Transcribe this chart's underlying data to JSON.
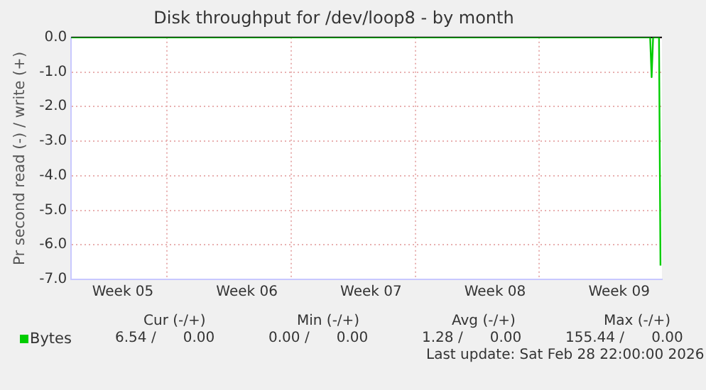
{
  "chart_data": {
    "type": "line",
    "title": "Disk throughput for /dev/loop8 - by month",
    "ylabel": "Pr second read (-) / write (+)",
    "x": [
      "2026-01-26T14:00",
      "2026-02-10T00:00",
      "2026-02-28T06:00",
      "2026-02-28T08:00",
      "2026-02-28T10:00",
      "2026-02-28T18:00",
      "2026-02-28T20:00"
    ],
    "series": [
      {
        "name": "Bytes",
        "color": "#00cc00",
        "values": [
          0,
          0,
          0,
          -1.15,
          0,
          0,
          -6.6
        ]
      }
    ],
    "xlim": [
      "2026-01-26T14:00",
      "2026-02-28T22:00"
    ],
    "xticks": [
      {
        "value": "2026-01-29T12:00",
        "label": "Week 05"
      },
      {
        "value": "2026-02-01T00:00",
        "label": null
      },
      {
        "value": "2026-02-05T12:00",
        "label": "Week 06"
      },
      {
        "value": "2026-02-08T00:00",
        "label": null
      },
      {
        "value": "2026-02-12T12:00",
        "label": "Week 07"
      },
      {
        "value": "2026-02-15T00:00",
        "label": null
      },
      {
        "value": "2026-02-19T12:00",
        "label": "Week 08"
      },
      {
        "value": "2026-02-22T00:00",
        "label": null
      },
      {
        "value": "2026-02-26T12:00",
        "label": "Week 09"
      }
    ],
    "ylim": [
      -7,
      0
    ],
    "yticks": [
      {
        "value": 0,
        "label": "0.0"
      },
      {
        "value": -1,
        "label": "-1.0"
      },
      {
        "value": -2,
        "label": "-2.0"
      },
      {
        "value": -3,
        "label": "-3.0"
      },
      {
        "value": -4,
        "label": "-4.0"
      },
      {
        "value": -5,
        "label": "-5.0"
      },
      {
        "value": -6,
        "label": "-6.0"
      },
      {
        "value": -7,
        "label": "-7.0"
      }
    ],
    "grid": true,
    "legend": "bottom left",
    "marker": "none",
    "line_style": "solid",
    "ref_lines": [
      {
        "axis": "y",
        "value": 0,
        "color": "#000000"
      }
    ],
    "annotations": [
      "Cur (-/+)",
      "Min (-/+)",
      "Avg (-/+)",
      "Max (-/+)",
      "6.54 /      0.00",
      "0.00 /      0.00",
      "1.28 /      0.00",
      "155.44 /      0.00",
      "Last update: Sat Feb 28 22:00:00 2026"
    ]
  }
}
